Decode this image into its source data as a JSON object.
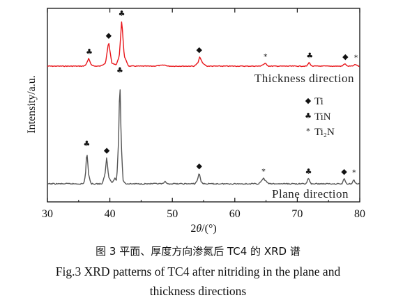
{
  "chart_data": {
    "type": "line",
    "xlabel": "2θ/(°)",
    "ylabel": "Intensity/a.u.",
    "xlim": [
      30,
      80
    ],
    "x_ticks": [
      30,
      40,
      50,
      60,
      70,
      80
    ],
    "y_ticks_shown": false,
    "grid": false,
    "legend": {
      "placement": "right-middle",
      "entries": [
        {
          "symbol": "◆",
          "label": "Ti"
        },
        {
          "symbol": "♣",
          "label": "TiN"
        },
        {
          "symbol": "*",
          "label": "Ti₂N"
        }
      ]
    },
    "series": [
      {
        "name": "Thickness direction",
        "color": "#e8161b",
        "relative_intensity": [
          [
            30,
            0.0
          ],
          [
            32,
            0.0
          ],
          [
            34,
            0.0
          ],
          [
            35.8,
            0.0
          ],
          [
            36.2,
            0.03
          ],
          [
            36.6,
            0.14
          ],
          [
            37.0,
            0.03
          ],
          [
            37.5,
            0.0
          ],
          [
            38.5,
            0.0
          ],
          [
            39.3,
            0.06
          ],
          [
            39.8,
            0.45
          ],
          [
            40.3,
            0.06
          ],
          [
            41.0,
            0.02
          ],
          [
            41.5,
            0.18
          ],
          [
            41.9,
            0.86
          ],
          [
            42.3,
            0.18
          ],
          [
            43.0,
            0.0
          ],
          [
            47.0,
            0.0
          ],
          [
            48.8,
            0.02
          ],
          [
            49.3,
            0.0
          ],
          [
            53.5,
            0.0
          ],
          [
            54.1,
            0.06
          ],
          [
            54.4,
            0.18
          ],
          [
            54.8,
            0.06
          ],
          [
            55.5,
            0.0
          ],
          [
            64.0,
            0.0
          ],
          [
            64.4,
            0.02
          ],
          [
            64.9,
            0.05
          ],
          [
            65.4,
            0.0
          ],
          [
            71.5,
            0.0
          ],
          [
            71.9,
            0.07
          ],
          [
            72.3,
            0.0
          ],
          [
            77.2,
            0.0
          ],
          [
            77.6,
            0.05
          ],
          [
            78.0,
            0.0
          ],
          [
            78.8,
            0.0
          ],
          [
            79.3,
            0.03
          ],
          [
            79.8,
            0.0
          ],
          [
            80,
            0.0
          ]
        ]
      },
      {
        "name": "Plane direction",
        "color": "#555555",
        "relative_intensity": [
          [
            30,
            0.0
          ],
          [
            34,
            0.0
          ],
          [
            35.8,
            0.0
          ],
          [
            36.1,
            0.08
          ],
          [
            36.3,
            0.3
          ],
          [
            36.6,
            0.08
          ],
          [
            37.0,
            0.0
          ],
          [
            38.8,
            0.0
          ],
          [
            39.2,
            0.08
          ],
          [
            39.5,
            0.24
          ],
          [
            39.8,
            0.06
          ],
          [
            40.4,
            0.01
          ],
          [
            40.8,
            0.05
          ],
          [
            41.1,
            0.03
          ],
          [
            41.4,
            0.4
          ],
          [
            41.6,
            0.96
          ],
          [
            41.8,
            0.4
          ],
          [
            42.1,
            0.03
          ],
          [
            42.6,
            0.0
          ],
          [
            48.5,
            0.0
          ],
          [
            48.8,
            0.02
          ],
          [
            49.1,
            0.0
          ],
          [
            53.6,
            0.0
          ],
          [
            54.0,
            0.03
          ],
          [
            54.3,
            0.1
          ],
          [
            54.6,
            0.02
          ],
          [
            55.0,
            0.0
          ],
          [
            63.8,
            0.0
          ],
          [
            64.2,
            0.02
          ],
          [
            64.6,
            0.05
          ],
          [
            65.0,
            0.02
          ],
          [
            65.5,
            0.0
          ],
          [
            71.4,
            0.0
          ],
          [
            71.8,
            0.05
          ],
          [
            72.2,
            0.0
          ],
          [
            77.2,
            0.0
          ],
          [
            77.5,
            0.05
          ],
          [
            77.9,
            0.0
          ],
          [
            78.7,
            0.0
          ],
          [
            79.0,
            0.04
          ],
          [
            79.4,
            0.0
          ],
          [
            80,
            0.0
          ]
        ]
      }
    ],
    "peak_markers": [
      {
        "series": 0,
        "x": 36.7,
        "symbol": "♣"
      },
      {
        "series": 0,
        "x": 39.8,
        "symbol": "◆"
      },
      {
        "series": 0,
        "x": 41.9,
        "symbol": "♣"
      },
      {
        "series": 0,
        "x": 54.3,
        "symbol": "◆"
      },
      {
        "series": 0,
        "x": 64.9,
        "symbol": "*"
      },
      {
        "series": 0,
        "x": 72.0,
        "symbol": "♣"
      },
      {
        "series": 0,
        "x": 77.7,
        "symbol": "◆"
      },
      {
        "series": 0,
        "x": 79.4,
        "symbol": "*"
      },
      {
        "series": 1,
        "x": 36.3,
        "symbol": "♣"
      },
      {
        "series": 1,
        "x": 39.5,
        "symbol": "◆"
      },
      {
        "series": 1,
        "x": 41.6,
        "symbol": "♣"
      },
      {
        "series": 1,
        "x": 54.3,
        "symbol": "◆"
      },
      {
        "series": 1,
        "x": 64.6,
        "symbol": "*"
      },
      {
        "series": 1,
        "x": 71.8,
        "symbol": "♣"
      },
      {
        "series": 1,
        "x": 77.5,
        "symbol": "◆"
      },
      {
        "series": 1,
        "x": 79.1,
        "symbol": "*"
      }
    ]
  },
  "caption": {
    "zh": "图 3  平面、厚度方向渗氮后 TC4 的 XRD 谱",
    "en_line1": "Fig.3  XRD patterns of TC4 after nitriding in the plane and",
    "en_line2": "thickness directions"
  }
}
